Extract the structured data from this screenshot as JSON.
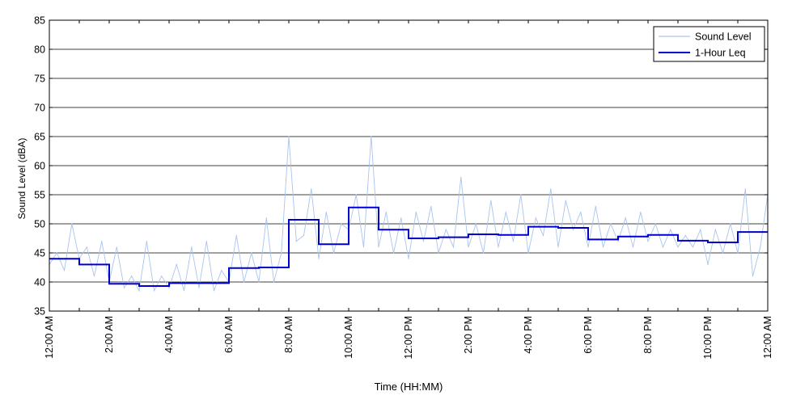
{
  "chart_data": {
    "type": "line",
    "title": "",
    "xlabel": "Time (HH:MM)",
    "ylabel": "Sound Level (dBA)",
    "ylim": [
      35,
      85
    ],
    "y_ticks": [
      35,
      40,
      45,
      50,
      55,
      60,
      65,
      70,
      75,
      80,
      85
    ],
    "xlim_hours": [
      0,
      24
    ],
    "x_tick_hours": [
      0,
      2,
      4,
      6,
      8,
      10,
      12,
      14,
      16,
      18,
      20,
      22,
      24
    ],
    "x_tick_labels": [
      "12:00 AM",
      "2:00 AM",
      "4:00 AM",
      "6:00 AM",
      "8:00 AM",
      "10:00 AM",
      "12:00 PM",
      "2:00 PM",
      "4:00 PM",
      "6:00 PM",
      "8:00 PM",
      "10:00 PM",
      "12:00 AM"
    ],
    "minor_x_tick_step_hours": 1,
    "grid": "horizontal",
    "legend_position": "top-right",
    "series": [
      {
        "name": "Sound Level",
        "color": "#a9c4ef",
        "x_hours": [
          0,
          0.25,
          0.5,
          0.75,
          1,
          1.25,
          1.5,
          1.75,
          2,
          2.25,
          2.5,
          2.75,
          3,
          3.25,
          3.5,
          3.75,
          4,
          4.25,
          4.5,
          4.75,
          5,
          5.25,
          5.5,
          5.75,
          6,
          6.25,
          6.5,
          6.75,
          7,
          7.25,
          7.5,
          7.75,
          8,
          8.25,
          8.5,
          8.75,
          9,
          9.25,
          9.5,
          9.75,
          10,
          10.25,
          10.5,
          10.75,
          11,
          11.25,
          11.5,
          11.75,
          12,
          12.25,
          12.5,
          12.75,
          13,
          13.25,
          13.5,
          13.75,
          14,
          14.25,
          14.5,
          14.75,
          15,
          15.25,
          15.5,
          15.75,
          16,
          16.25,
          16.5,
          16.75,
          17,
          17.25,
          17.5,
          17.75,
          18,
          18.25,
          18.5,
          18.75,
          19,
          19.25,
          19.5,
          19.75,
          20,
          20.25,
          20.5,
          20.75,
          21,
          21.25,
          21.5,
          21.75,
          22,
          22.25,
          22.5,
          22.75,
          23,
          23.25,
          23.5,
          23.75,
          24
        ],
        "values": [
          43,
          45,
          42,
          50,
          44,
          46,
          41,
          47,
          40,
          46,
          39,
          41,
          38.5,
          47,
          38.5,
          41,
          39,
          43,
          38.5,
          46,
          39,
          47,
          38.5,
          42,
          40,
          48,
          40,
          45,
          40,
          51,
          40,
          45,
          65,
          47,
          48,
          56,
          44,
          52,
          45,
          50,
          49,
          55,
          46,
          65,
          46,
          52,
          45,
          51,
          44,
          52,
          47,
          53,
          45,
          49,
          46,
          58,
          46,
          50,
          45,
          54,
          46,
          52,
          47,
          55,
          45,
          51,
          48,
          56,
          46,
          54,
          49,
          52,
          46,
          53,
          46,
          50,
          47,
          51,
          46,
          52,
          47,
          50,
          46,
          49,
          46,
          48,
          46,
          49,
          43,
          49,
          45,
          50,
          45,
          56,
          41,
          46,
          55
        ]
      },
      {
        "name": "1-Hour Leq",
        "color": "#0000cc",
        "step_hours": [
          0,
          1,
          2,
          3,
          4,
          5,
          6,
          7,
          8,
          9,
          10,
          11,
          12,
          13,
          14,
          15,
          16,
          17,
          18,
          19,
          20,
          21,
          22,
          23
        ],
        "values": [
          44,
          43,
          39.7,
          39.3,
          39.8,
          39.8,
          42.4,
          42.5,
          50.7,
          46.5,
          52.8,
          49,
          47.5,
          47.7,
          48.2,
          48.1,
          49.5,
          49.3,
          47.3,
          47.8,
          48.1,
          47.1,
          46.8,
          48.6
        ]
      }
    ]
  }
}
